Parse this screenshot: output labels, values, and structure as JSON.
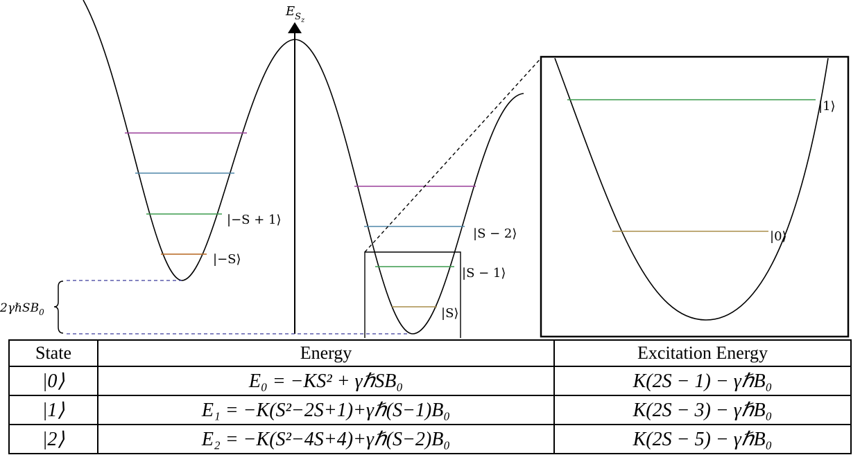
{
  "axis": {
    "label_main": "E",
    "label_sub": "S",
    "label_subsub": "z"
  },
  "states": {
    "left_ground": "|−S⟩",
    "left_first": "|−S + 1⟩",
    "right_ground": "|S⟩",
    "right_first": "|S − 1⟩",
    "right_second": "|S − 2⟩"
  },
  "zoom": {
    "ground": "|0⟩",
    "first": "|1⟩"
  },
  "gap_label": "2γℏSB",
  "gap_label_sub": "0",
  "colors": {
    "level_brown": "#b5651d",
    "level_tan": "#a88d4a",
    "level_green": "#3a9a4c",
    "level_blue": "#4f86a8",
    "level_purple": "#9a3f9a",
    "dash": "#3b3b9a"
  },
  "table": {
    "headers": [
      "State",
      "Energy",
      "Excitation Energy"
    ],
    "rows": [
      {
        "state": "|0⟩",
        "energy": "E₀ = −KS² + γℏSB₀",
        "excitation": "K(2S − 1) − γℏB₀"
      },
      {
        "state": "|1⟩",
        "energy": "E₁ = −K(S²−2S+1)+γℏ(S−1)B₀",
        "excitation": "K(2S − 3) − γℏB₀"
      },
      {
        "state": "|2⟩",
        "energy": "E₂ = −K(S²−4S+4)+γℏ(S−2)B₀",
        "excitation": "K(2S − 5) − γℏB₀"
      }
    ]
  }
}
